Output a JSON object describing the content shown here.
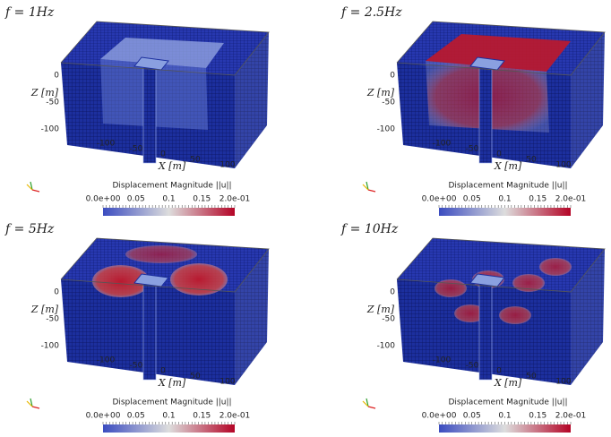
{
  "panels": [
    {
      "title": "f = 1Hz",
      "z_label": "Z [m]",
      "z_ticks": [
        "0",
        "-50",
        "-100"
      ],
      "x_label": "X [m]",
      "x_ticks": [
        "-100",
        "-50",
        "0",
        "50",
        "100"
      ],
      "colorbar_title": "Displacement Magnitude ||u||",
      "colorbar_ticks": [
        "0.0e+00",
        "0.05",
        "0.1",
        "0.15",
        "2.0e-01"
      ]
    },
    {
      "title": "f = 2.5Hz",
      "z_label": "Z [m]",
      "z_ticks": [
        "0",
        "-50",
        "-100"
      ],
      "x_label": "X [m]",
      "x_ticks": [
        "-100",
        "-50",
        "0",
        "50",
        "100"
      ],
      "colorbar_title": "Displacement Magnitude ||u||",
      "colorbar_ticks": [
        "0.0e+00",
        "0.05",
        "0.1",
        "0.15",
        "2.0e-01"
      ]
    },
    {
      "title": "f = 5Hz",
      "z_label": "Z [m]",
      "z_ticks": [
        "0",
        "-50",
        "-100"
      ],
      "x_label": "X [m]",
      "x_ticks": [
        "-100",
        "-50",
        "0",
        "50",
        "100"
      ],
      "colorbar_title": "Displacement Magnitude ||u||",
      "colorbar_ticks": [
        "0.0e+00",
        "0.05",
        "0.1",
        "0.15",
        "2.0e-01"
      ]
    },
    {
      "title": "f = 10Hz",
      "z_label": "Z [m]",
      "z_ticks": [
        "0",
        "-50",
        "-100"
      ],
      "x_label": "X [m]",
      "x_ticks": [
        "-100",
        "-50",
        "0",
        "50",
        "100"
      ],
      "colorbar_title": "Displacement Magnitude ||u||",
      "colorbar_ticks": [
        "0.0e+00",
        "0.05",
        "0.1",
        "0.15",
        "2.0e-01"
      ]
    }
  ]
}
